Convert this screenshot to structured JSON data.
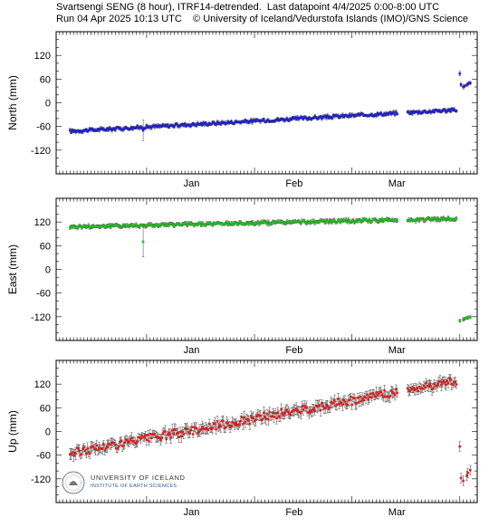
{
  "header": {
    "line1": "Svartsengi SENG (8 hour), ITRF14-detrended.  Last datapoint 4/4/2025 0:00-8:00 UTC",
    "line2": "Run 04 Apr 2025 10:13 UTC    © University of Iceland/Vedurstofa Islands (IMO)/GNS Science"
  },
  "logo": {
    "name": "UNIVERSITY OF ICELAND",
    "sub": "INSTITUTE OF EARTH SCIENCES",
    "seal_icon": "university-seal-icon"
  },
  "colors": {
    "north": "#1f1fcc",
    "east": "#22bb22",
    "up": "#dd2222",
    "error": "#444444",
    "frame": "#000000"
  },
  "chart_data": [
    {
      "type": "scatter",
      "ylabel": "North (mm)",
      "xlabel": "",
      "x_range": [
        "2024-12-06",
        "2025-04-06"
      ],
      "month_ticks": [
        {
          "date": "2025-01-01",
          "label": "Jan"
        },
        {
          "date": "2025-02-01",
          "label": "Feb"
        },
        {
          "date": "2025-03-01",
          "label": "Mar"
        }
      ],
      "ylim": [
        -180,
        180
      ],
      "yticks": [
        120,
        60,
        0,
        -60,
        -120
      ],
      "color": "#1f1fcc",
      "trend": {
        "start_date": "2024-12-10",
        "start": -72,
        "end_date": "2025-03-31",
        "end": -18,
        "error": 4
      },
      "gap": [
        "2025-03-14",
        "2025-03-17"
      ],
      "outliers": [
        {
          "date": "2024-12-31",
          "value": -70,
          "error": 26
        }
      ],
      "post_event": [
        {
          "date": "2025-04-01",
          "value": 74,
          "error": 6
        },
        {
          "date": "2025-04-01",
          "value": 46,
          "error": 5
        },
        {
          "date": "2025-04-02",
          "value": 40,
          "error": 5
        },
        {
          "date": "2025-04-02",
          "value": 42,
          "error": 4
        },
        {
          "date": "2025-04-03",
          "value": 45,
          "error": 4
        },
        {
          "date": "2025-04-03",
          "value": 48,
          "error": 4
        },
        {
          "date": "2025-04-03",
          "value": 50,
          "error": 4
        },
        {
          "date": "2025-04-04",
          "value": 50,
          "error": 4
        }
      ]
    },
    {
      "type": "scatter",
      "ylabel": "East (mm)",
      "xlabel": "",
      "x_range": [
        "2024-12-06",
        "2025-04-06"
      ],
      "month_ticks": [
        {
          "date": "2025-01-01",
          "label": "Jan"
        },
        {
          "date": "2025-02-01",
          "label": "Feb"
        },
        {
          "date": "2025-03-01",
          "label": "Mar"
        }
      ],
      "ylim": [
        -180,
        180
      ],
      "yticks": [
        120,
        60,
        0,
        -60,
        -120
      ],
      "color": "#22bb22",
      "trend": {
        "start_date": "2024-12-10",
        "start": 108,
        "end_date": "2025-03-31",
        "end": 128,
        "error": 4
      },
      "gap": [
        "2025-03-14",
        "2025-03-17"
      ],
      "outliers": [
        {
          "date": "2024-12-31",
          "value": 70,
          "error": 38
        }
      ],
      "post_event": [
        {
          "date": "2025-04-01",
          "value": -130,
          "error": 4
        },
        {
          "date": "2025-04-02",
          "value": -127,
          "error": 4
        },
        {
          "date": "2025-04-02",
          "value": -125,
          "error": 4
        },
        {
          "date": "2025-04-03",
          "value": -123,
          "error": 4
        },
        {
          "date": "2025-04-03",
          "value": -122,
          "error": 4
        },
        {
          "date": "2025-04-04",
          "value": -121,
          "error": 4
        }
      ]
    },
    {
      "type": "scatter",
      "ylabel": "Up (mm)",
      "xlabel": "",
      "x_range": [
        "2024-12-06",
        "2025-04-06"
      ],
      "month_ticks": [
        {
          "date": "2025-01-01",
          "label": "Jan"
        },
        {
          "date": "2025-02-01",
          "label": "Feb"
        },
        {
          "date": "2025-03-01",
          "label": "Mar"
        }
      ],
      "ylim": [
        -180,
        180
      ],
      "yticks": [
        120,
        60,
        0,
        -60,
        -120
      ],
      "color": "#dd2222",
      "trend": {
        "start_date": "2024-12-10",
        "start": -55,
        "end_date": "2025-03-31",
        "end": 128,
        "error": 12
      },
      "gap": [
        "2025-03-14",
        "2025-03-17"
      ],
      "outliers": [],
      "post_event": [
        {
          "date": "2025-04-01",
          "value": -38,
          "error": 12
        },
        {
          "date": "2025-04-01",
          "value": -118,
          "error": 12
        },
        {
          "date": "2025-04-02",
          "value": -125,
          "error": 12
        },
        {
          "date": "2025-04-03",
          "value": -112,
          "error": 12
        },
        {
          "date": "2025-04-03",
          "value": -105,
          "error": 12
        },
        {
          "date": "2025-04-04",
          "value": -98,
          "error": 12
        }
      ]
    }
  ]
}
